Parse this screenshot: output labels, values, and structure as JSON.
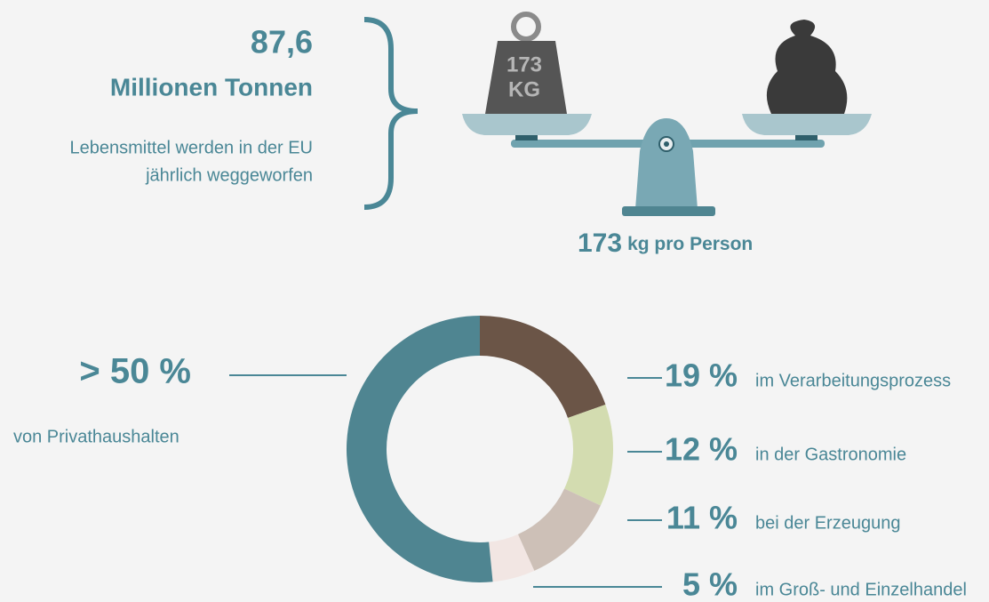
{
  "header": {
    "amount": "87,6",
    "unit": "Millionen Tonnen",
    "description": [
      "Lebensmittel werden in der EU",
      "jährlich weggeworfen"
    ]
  },
  "weight": {
    "number": "173",
    "unit": "KG"
  },
  "per_person": {
    "number": "173",
    "text": "kg pro Person"
  },
  "chart_data": {
    "type": "donut",
    "categories": [
      "im Verarbeitungsprozess",
      "in der Gastronomie",
      "bei der Erzeugung",
      "im Groß- und Einzelhandel",
      "von Privathaushalten"
    ],
    "values": [
      19,
      12,
      11,
      5,
      50
    ],
    "value_labels": [
      "19 %",
      "12 %",
      "11 %",
      "5 %",
      "> 50 %"
    ],
    "colors": [
      "#6b5547",
      "#d3dcb0",
      "#cdc0b7",
      "#f2e6e3",
      "#4f8591"
    ]
  }
}
